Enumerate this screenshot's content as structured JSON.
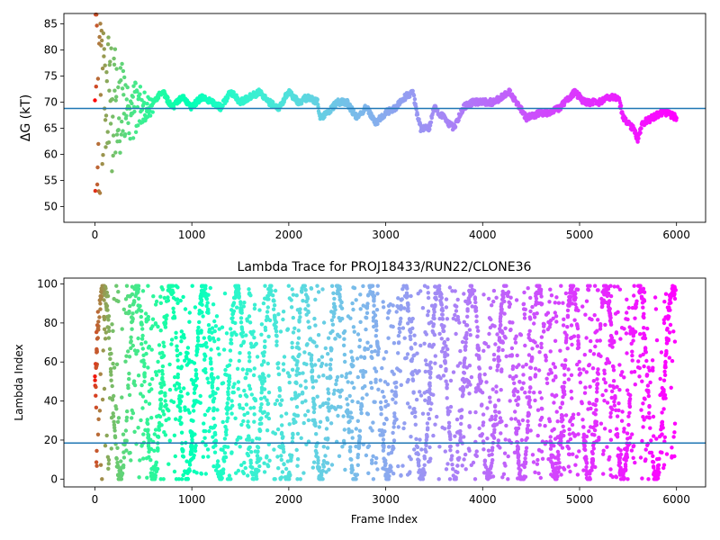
{
  "chart_data": [
    {
      "type": "scatter",
      "title": "",
      "xlabel": "",
      "ylabel": "ΔG (kT)",
      "xlim": [
        -320,
        6300
      ],
      "ylim": [
        47,
        87
      ],
      "xticks": [
        0,
        1000,
        2000,
        3000,
        4000,
        5000,
        6000
      ],
      "yticks": [
        50,
        55,
        60,
        65,
        70,
        75,
        80,
        85
      ],
      "reference_line": {
        "y": 68.8,
        "color": "#1f77b4"
      },
      "colormap": "rainbow (reversed: red at early frames, violet at late frames)",
      "grid": false,
      "legend": "none",
      "trace_points": [
        [
          0,
          50
        ],
        [
          20,
          80
        ],
        [
          40,
          60
        ],
        [
          60,
          74
        ],
        [
          80,
          67
        ],
        [
          100,
          58
        ],
        [
          120,
          72
        ],
        [
          140,
          55
        ],
        [
          160,
          68
        ],
        [
          180,
          62
        ],
        [
          200,
          64
        ],
        [
          240,
          66
        ],
        [
          300,
          72
        ],
        [
          350,
          67
        ],
        [
          400,
          70
        ],
        [
          450,
          69
        ],
        [
          500,
          70
        ],
        [
          600,
          70
        ],
        [
          700,
          72
        ],
        [
          800,
          69
        ],
        [
          900,
          71
        ],
        [
          1000,
          69
        ],
        [
          1100,
          71
        ],
        [
          1200,
          70
        ],
        [
          1300,
          69
        ],
        [
          1400,
          72
        ],
        [
          1500,
          70
        ],
        [
          1600,
          71
        ],
        [
          1700,
          72
        ],
        [
          1800,
          70
        ],
        [
          1900,
          69
        ],
        [
          2000,
          72
        ],
        [
          2100,
          70
        ],
        [
          2200,
          71
        ],
        [
          2300,
          70
        ],
        [
          2320,
          67
        ],
        [
          2400,
          68
        ],
        [
          2500,
          70
        ],
        [
          2600,
          70
        ],
        [
          2700,
          67
        ],
        [
          2800,
          69
        ],
        [
          2900,
          66
        ],
        [
          3000,
          68
        ],
        [
          3100,
          69
        ],
        [
          3200,
          71
        ],
        [
          3280,
          72
        ],
        [
          3320,
          68
        ],
        [
          3360,
          65
        ],
        [
          3450,
          65
        ],
        [
          3500,
          69
        ],
        [
          3600,
          67
        ],
        [
          3700,
          65
        ],
        [
          3800,
          69
        ],
        [
          3900,
          70
        ],
        [
          4000,
          70
        ],
        [
          4100,
          70
        ],
        [
          4200,
          71
        ],
        [
          4280,
          72
        ],
        [
          4350,
          70
        ],
        [
          4450,
          67
        ],
        [
          4600,
          68
        ],
        [
          4700,
          68
        ],
        [
          4800,
          69
        ],
        [
          4950,
          72
        ],
        [
          5050,
          70
        ],
        [
          5200,
          70
        ],
        [
          5300,
          71
        ],
        [
          5400,
          71
        ],
        [
          5450,
          67
        ],
        [
          5550,
          65
        ],
        [
          5600,
          63
        ],
        [
          5650,
          66
        ],
        [
          5750,
          67
        ],
        [
          5850,
          68
        ],
        [
          5900,
          68
        ],
        [
          6000,
          67
        ]
      ]
    },
    {
      "type": "scatter",
      "title": "Lambda Trace for PROJ18433/RUN22/CLONE36",
      "xlabel": "Frame Index",
      "ylabel": "Lambda Index",
      "xlim": [
        -320,
        6300
      ],
      "ylim": [
        -4,
        103
      ],
      "xticks": [
        0,
        1000,
        2000,
        3000,
        4000,
        5000,
        6000
      ],
      "yticks": [
        0,
        20,
        40,
        60,
        80,
        100
      ],
      "reference_line": {
        "y": 18.5,
        "color": "#1f77b4"
      },
      "colormap": "rainbow (reversed: red at early frames, violet at late frames)",
      "grid": false,
      "legend": "none",
      "point_count": 4200,
      "value_range": [
        0,
        99
      ]
    }
  ]
}
